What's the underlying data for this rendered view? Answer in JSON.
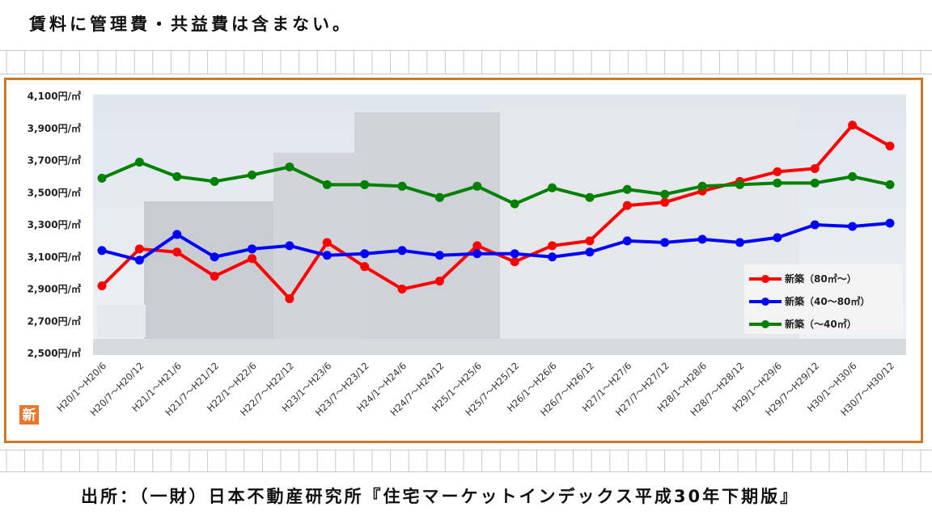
{
  "caption_top": "賃料に管理費・共益費は含まない。",
  "caption_bottom": "出所：（一財）日本不動産研究所『住宅マーケットインデックス平成30年下期版』",
  "logo_char": "新",
  "chart_data": {
    "type": "line",
    "title": "",
    "xlabel": "",
    "ylabel": "",
    "ylim": [
      2500,
      4100
    ],
    "yticks": [
      2500,
      2700,
      2900,
      3100,
      3300,
      3500,
      3700,
      3900,
      4100
    ],
    "ytick_labels": [
      "2,500円/㎡",
      "2,700円/㎡",
      "2,900円/㎡",
      "3,100円/㎡",
      "3,300円/㎡",
      "3,500円/㎡",
      "3,700円/㎡",
      "3,900円/㎡",
      "4,100円/㎡"
    ],
    "categories": [
      "H20/1～H20/6",
      "H20/7～H20/12",
      "H21/1～H21/6",
      "H21/7～H21/12",
      "H22/1～H22/6",
      "H22/7～H22/12",
      "H23/1～H23/6",
      "H23/7～H23/12",
      "H24/1～H24/6",
      "H24/7～H24/12",
      "H25/1～H25/6",
      "H25/7～H25/12",
      "H26/1～H26/6",
      "H26/7～H26/12",
      "H27/1～H27/6",
      "H27/7～H27/12",
      "H28/1～H28/6",
      "H28/7～H28/12",
      "H29/1～H29/6",
      "H29/7～H29/12",
      "H30/1～H30/6",
      "H30/7～H30/12"
    ],
    "legend_position": "right",
    "grid": false,
    "series": [
      {
        "name": "新築（80㎡～）",
        "color": "#ff0000",
        "values": [
          2920,
          3150,
          3130,
          2980,
          3090,
          2840,
          3190,
          3040,
          2900,
          2950,
          3170,
          3070,
          3170,
          3200,
          3420,
          3440,
          3510,
          3570,
          3630,
          3650,
          3920,
          3790
        ]
      },
      {
        "name": "新築（40～80㎡）",
        "color": "#0000ff",
        "values": [
          3140,
          3080,
          3240,
          3100,
          3150,
          3170,
          3110,
          3120,
          3140,
          3110,
          3120,
          3120,
          3100,
          3130,
          3200,
          3190,
          3210,
          3190,
          3220,
          3300,
          3290,
          3310
        ]
      },
      {
        "name": "新築（～40㎡）",
        "color": "#008000",
        "values": [
          3590,
          3690,
          3600,
          3570,
          3610,
          3660,
          3550,
          3550,
          3540,
          3470,
          3540,
          3430,
          3530,
          3470,
          3520,
          3490,
          3540,
          3550,
          3560,
          3560,
          3600,
          3550
        ]
      }
    ]
  }
}
